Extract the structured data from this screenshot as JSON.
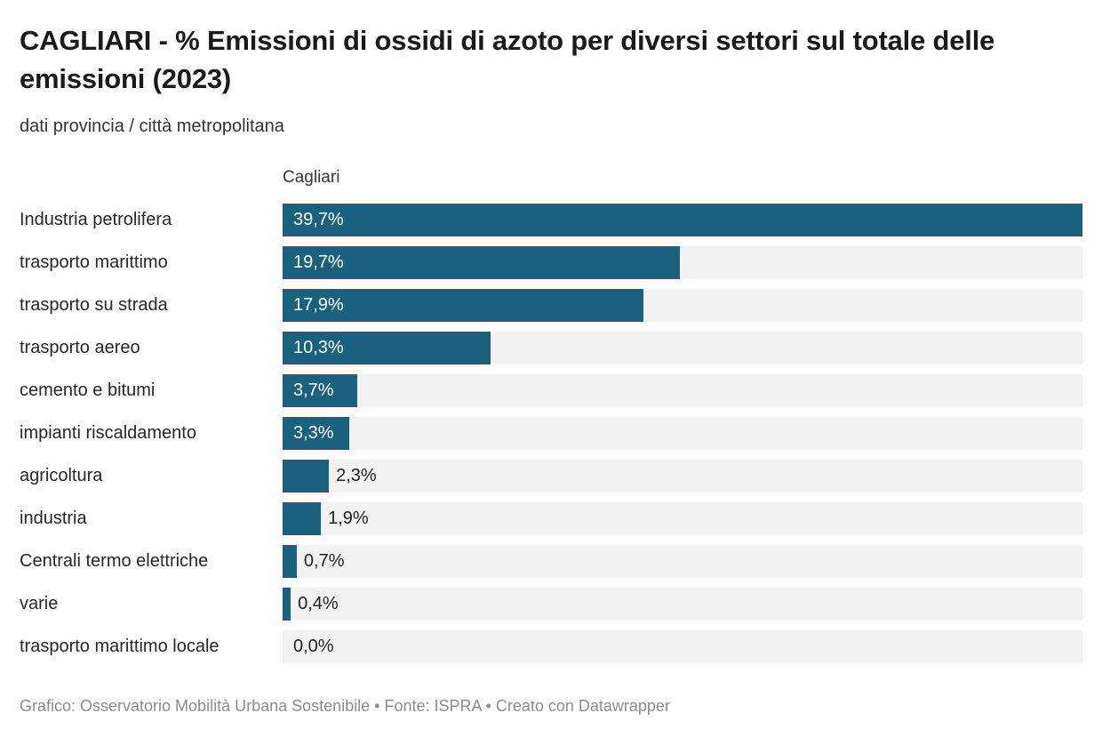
{
  "title": "CAGLIARI - % Emissioni di ossidi di azoto per diversi settori sul totale delle emissioni (2023)",
  "subtitle": "dati provincia / città metropolitana",
  "column_header": "Cagliari",
  "footer": "Grafico: Osservatorio Mobilità Urbana Sostenibile • Fonte: ISPRA • Creato con Datawrapper",
  "colors": {
    "bar": "#19617e",
    "track": "#f2f2f2",
    "value_inside": "#ffffff",
    "value_outside": "#222222"
  },
  "chart_data": {
    "type": "bar",
    "orientation": "horizontal",
    "title": "CAGLIARI - % Emissioni di ossidi di azoto per diversi settori sul totale delle emissioni (2023)",
    "subtitle": "dati provincia / città metropolitana",
    "column_header": "Cagliari",
    "unit": "%",
    "xlim": [
      0,
      39.7
    ],
    "grid": false,
    "legend": null,
    "categories": [
      "Industria petrolifera",
      "trasporto marittimo",
      "trasporto su strada",
      "trasporto aereo",
      "cemento e bitumi",
      "impianti riscaldamento",
      "agricoltura",
      "industria",
      "Centrali termo elettriche",
      "varie",
      "trasporto marittimo locale"
    ],
    "values": [
      39.7,
      19.7,
      17.9,
      10.3,
      3.7,
      3.3,
      2.3,
      1.9,
      0.7,
      0.4,
      0.0
    ],
    "value_labels": [
      "39,7%",
      "19,7%",
      "17,9%",
      "10,3%",
      "3,7%",
      "3,3%",
      "2,3%",
      "1,9%",
      "0,7%",
      "0,4%",
      "0,0%"
    ]
  }
}
